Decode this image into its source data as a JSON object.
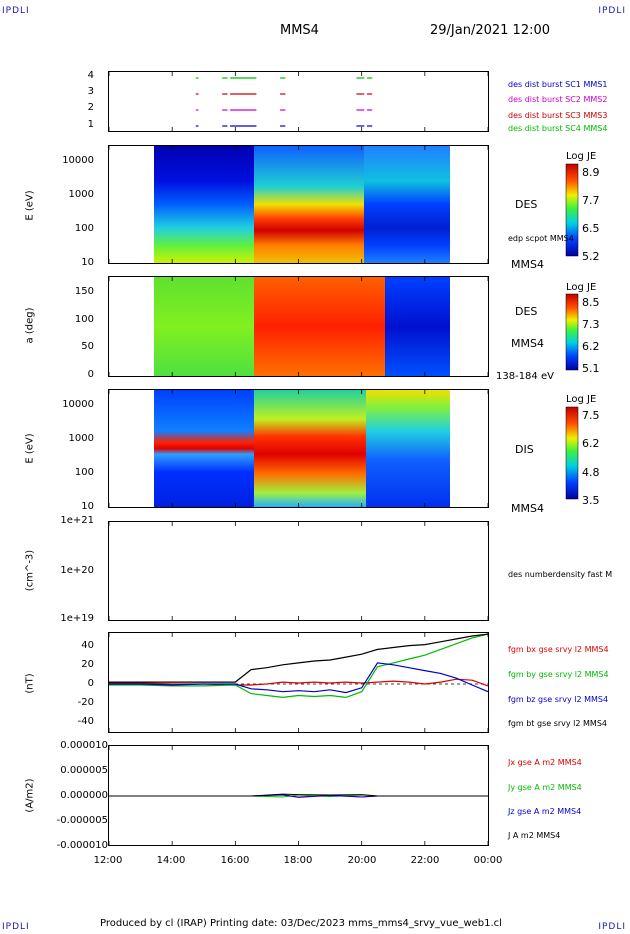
{
  "header": {
    "corner_left_top": "IPDLI",
    "corner_right_top": "IPDLI",
    "corner_left_bottom": "IPDLI",
    "corner_right_bottom": "IPDLI",
    "title": "MMS4",
    "date": "29/Jan/2021 12:00"
  },
  "footer": {
    "text": "Produced by cl (IRAP)   Printing date: 03/Dec/2023   mms_mms4_srvy_vue_web1.cl"
  },
  "x_axis": {
    "ticks": [
      "12:00",
      "14:00",
      "16:00",
      "18:00",
      "20:00",
      "22:00",
      "00:00"
    ]
  },
  "panels": {
    "burst": {
      "y_ticks": [
        "4",
        "3",
        "2",
        "1"
      ],
      "legend": [
        {
          "label": "des dist burst SC1 MMS1",
          "color": "#0000cc"
        },
        {
          "label": "des dist burst SC2 MMS2",
          "color": "#cc00cc"
        },
        {
          "label": "des dist burst SC3 MMS3",
          "color": "#cc0000"
        },
        {
          "label": "des dist burst SC4 MMS4",
          "color": "#00bb00"
        }
      ]
    },
    "des_energy": {
      "ylabel": "E (eV)",
      "y_ticks": [
        "10000",
        "1000",
        "100",
        "10"
      ],
      "side_label": "DES",
      "side_label2": "edp scpot MMS4",
      "below_label": "MMS4",
      "cbar_title": "Log JE",
      "cbar_ticks": [
        "8.9",
        "7.7",
        "6.5",
        "5.2"
      ]
    },
    "des_pitch": {
      "ylabel": "a (deg)",
      "y_ticks": [
        "150",
        "100",
        "50",
        "0"
      ],
      "side_label": "DES",
      "side_label2": "MMS4",
      "below_label": "138-184 eV",
      "cbar_title": "Log JE",
      "cbar_ticks": [
        "8.5",
        "7.3",
        "6.2",
        "5.1"
      ]
    },
    "dis_energy": {
      "ylabel": "E (eV)",
      "y_ticks": [
        "10000",
        "1000",
        "100",
        "10"
      ],
      "side_label": "DIS",
      "below_label": "MMS4",
      "cbar_title": "Log JE",
      "cbar_ticks": [
        "7.5",
        "6.2",
        "4.8",
        "3.5"
      ]
    },
    "density": {
      "ylabel": "(cm^-3)",
      "y_ticks": [
        "1e+21",
        "1e+20",
        "1e+19"
      ],
      "legend": [
        {
          "label": "des numberdensity fast M",
          "color": "#000000"
        }
      ]
    },
    "fgm": {
      "ylabel": "(nT)",
      "y_ticks": [
        "40",
        "20",
        "0",
        "-20",
        "-40"
      ],
      "legend": [
        {
          "label": "fgm bx gse srvy l2 MMS4",
          "color": "#dd0000"
        },
        {
          "label": "fgm by gse srvy l2 MMS4",
          "color": "#00bb00"
        },
        {
          "label": "fgm bz gse srvy l2 MMS4",
          "color": "#0000cc"
        },
        {
          "label": "fgm bt gse srvy l2 MMS4",
          "color": "#000000"
        }
      ]
    },
    "current": {
      "ylabel": "(A/m2)",
      "y_ticks": [
        "0.000010",
        "0.000005",
        "0.000000",
        "-0.000005",
        "-0.000010"
      ],
      "legend": [
        {
          "label": "Jx gse A m2 MMS4",
          "color": "#dd0000"
        },
        {
          "label": "Jy gse A m2 MMS4",
          "color": "#00bb00"
        },
        {
          "label": "Jz gse A m2 MMS4",
          "color": "#0000cc"
        },
        {
          "label": "J A m2 MMS4",
          "color": "#000000"
        }
      ]
    }
  },
  "chart_data": [
    {
      "type": "scatter",
      "title": "",
      "xlabel": "",
      "x_range": [
        "12:00",
        "00:00"
      ],
      "ylim": [
        0.5,
        4.5
      ],
      "series": [
        {
          "name": "des dist burst SC1 MMS1",
          "color": "#0000cc",
          "y": 1,
          "intervals": [
            [
              "14:45",
              "14:50"
            ],
            [
              "15:35",
              "15:45"
            ],
            [
              "15:50",
              "16:40"
            ],
            [
              "17:25",
              "17:35"
            ],
            [
              "19:50",
              "20:05"
            ],
            [
              "20:10",
              "20:20"
            ]
          ]
        },
        {
          "name": "des dist burst SC2 MMS2",
          "color": "#cc00cc",
          "y": 2,
          "intervals": [
            [
              "14:45",
              "14:50"
            ],
            [
              "15:35",
              "15:45"
            ],
            [
              "15:50",
              "16:40"
            ],
            [
              "17:25",
              "17:35"
            ],
            [
              "19:50",
              "20:05"
            ],
            [
              "20:10",
              "20:20"
            ]
          ]
        },
        {
          "name": "des dist burst SC3 MMS3",
          "color": "#cc0000",
          "y": 3,
          "intervals": [
            [
              "14:45",
              "14:50"
            ],
            [
              "15:35",
              "15:45"
            ],
            [
              "15:50",
              "16:40"
            ],
            [
              "17:25",
              "17:35"
            ],
            [
              "19:50",
              "20:05"
            ],
            [
              "20:10",
              "20:20"
            ]
          ]
        },
        {
          "name": "des dist burst SC4 MMS4",
          "color": "#00bb00",
          "y": 4,
          "intervals": [
            [
              "14:45",
              "14:50"
            ],
            [
              "15:35",
              "15:45"
            ],
            [
              "15:50",
              "16:40"
            ],
            [
              "17:25",
              "17:35"
            ],
            [
              "19:50",
              "20:05"
            ],
            [
              "20:10",
              "20:20"
            ]
          ]
        }
      ]
    },
    {
      "type": "heatmap",
      "title": "DES",
      "ylabel": "E (eV)",
      "y_scale": "log",
      "ylim": [
        10,
        30000
      ],
      "colorbar": {
        "title": "Log JE",
        "min": 5.2,
        "max": 8.9
      },
      "time_segments": [
        {
          "start": "13:25",
          "end": "16:35",
          "low_energy_value": 7.0,
          "high_energy_value": 5.3
        },
        {
          "start": "16:35",
          "end": "19:55",
          "low_energy_value": 8.8,
          "high_energy_value": 6.3
        },
        {
          "start": "19:55",
          "end": "22:45",
          "low_energy_value": 5.6,
          "high_energy_value": 6.3
        }
      ]
    },
    {
      "type": "heatmap",
      "title": "DES",
      "ylabel": "a (deg)",
      "ylim": [
        0,
        180
      ],
      "colorbar": {
        "title": "Log JE",
        "min": 5.1,
        "max": 8.5
      },
      "time_segments": [
        {
          "start": "13:25",
          "end": "16:35",
          "value": 6.9
        },
        {
          "start": "16:35",
          "end": "20:30",
          "value": 8.2
        },
        {
          "start": "20:30",
          "end": "22:45",
          "value": 5.5
        }
      ]
    },
    {
      "type": "heatmap",
      "title": "DIS",
      "ylabel": "E (eV)",
      "y_scale": "log",
      "ylim": [
        10,
        30000
      ],
      "colorbar": {
        "title": "Log JE",
        "min": 3.5,
        "max": 7.5
      },
      "time_segments": [
        {
          "start": "13:25",
          "end": "16:35",
          "peak_energy_eV": 700,
          "peak_value": 7.4,
          "background_value": 4.5
        },
        {
          "start": "16:35",
          "end": "20:00",
          "peak_energy_eV": 800,
          "peak_value": 7.3,
          "background_value": 5.8
        },
        {
          "start": "20:00",
          "end": "22:45",
          "peak_energy_eV": 8000,
          "peak_value": 6.5,
          "background_value": 5.0
        }
      ]
    },
    {
      "type": "line",
      "ylabel": "(cm^-3)",
      "y_scale": "log",
      "ylim": [
        1e+19,
        1e+21
      ],
      "series": []
    },
    {
      "type": "line",
      "ylabel": "(nT)",
      "ylim": [
        -50,
        50
      ],
      "x": [
        "12:00",
        "13:00",
        "14:00",
        "15:00",
        "16:00",
        "16:30",
        "17:00",
        "17:30",
        "18:00",
        "18:30",
        "19:00",
        "19:30",
        "20:00",
        "20:30",
        "21:00",
        "21:30",
        "22:00",
        "22:30",
        "23:00",
        "23:30",
        "00:00"
      ],
      "series": [
        {
          "name": "fgm bx gse srvy l2 MMS4",
          "color": "#dd0000",
          "values": [
            1,
            1,
            0,
            0,
            -1,
            -1,
            0,
            2,
            1,
            2,
            1,
            2,
            1,
            2,
            3,
            2,
            0,
            2,
            5,
            4,
            -2
          ]
        },
        {
          "name": "fgm by gse srvy l2 MMS4",
          "color": "#00bb00",
          "values": [
            -1,
            -1,
            -2,
            -2,
            -1,
            -10,
            -12,
            -14,
            -12,
            -13,
            -12,
            -14,
            -8,
            18,
            22,
            26,
            30,
            36,
            42,
            48,
            52
          ]
        },
        {
          "name": "fgm bz gse srvy l2 MMS4",
          "color": "#0000cc",
          "values": [
            0,
            0,
            -1,
            0,
            0,
            -5,
            -6,
            -8,
            -7,
            -8,
            -6,
            -9,
            -4,
            22,
            20,
            17,
            14,
            11,
            6,
            -1,
            -8
          ]
        },
        {
          "name": "fgm bt gse srvy l2 MMS4",
          "color": "#000000",
          "values": [
            2,
            2,
            2,
            2,
            2,
            15,
            17,
            20,
            22,
            24,
            25,
            28,
            31,
            36,
            38,
            40,
            41,
            44,
            47,
            50,
            52
          ]
        }
      ]
    },
    {
      "type": "line",
      "ylabel": "(A/m2)",
      "ylim": [
        -1e-05,
        1e-05
      ],
      "x": [
        "12:00",
        "16:30",
        "17:30",
        "18:00",
        "19:00",
        "20:00",
        "20:30",
        "00:00"
      ],
      "series": [
        {
          "name": "Jx gse A m2 MMS4",
          "color": "#dd0000",
          "values": [
            0,
            0,
            3e-07,
            -2e-07,
            2e-07,
            -2e-07,
            0,
            0
          ]
        },
        {
          "name": "Jy gse A m2 MMS4",
          "color": "#00bb00",
          "values": [
            0,
            0,
            -2e-07,
            2e-07,
            -1e-07,
            2e-07,
            0,
            0
          ]
        },
        {
          "name": "Jz gse A m2 MMS4",
          "color": "#0000cc",
          "values": [
            0,
            0,
            2e-07,
            -3e-07,
            1e-07,
            -2e-07,
            0,
            0
          ]
        },
        {
          "name": "J A m2 MMS4",
          "color": "#000000",
          "values": [
            0,
            0,
            4e-07,
            3e-07,
            2e-07,
            3e-07,
            0,
            0
          ]
        }
      ]
    }
  ]
}
